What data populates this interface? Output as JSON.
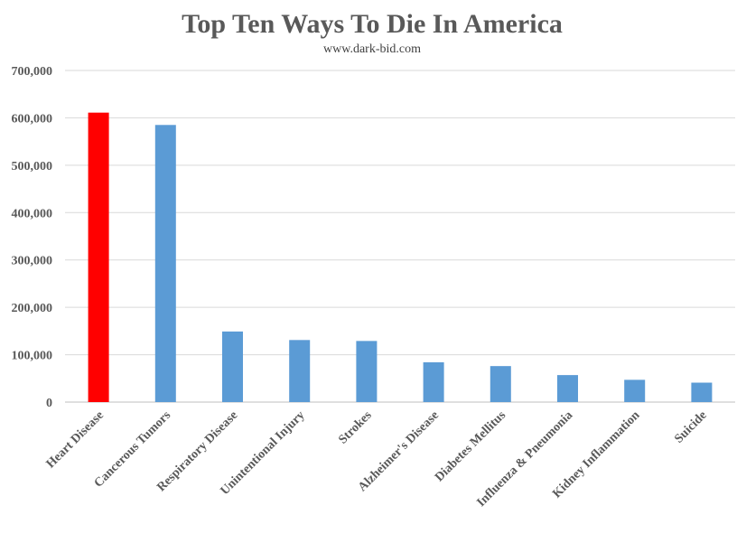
{
  "chart_data": {
    "type": "bar",
    "title": "Top Ten Ways To Die In America",
    "subtitle": "www.dark-bid.com",
    "xlabel": "",
    "ylabel": "",
    "ylim": [
      0,
      700000
    ],
    "yticks": [
      0,
      100000,
      200000,
      300000,
      400000,
      500000,
      600000,
      700000
    ],
    "ytick_labels": [
      "0",
      "100,000",
      "200,000",
      "300,000",
      "400,000",
      "500,000",
      "600,000",
      "700,000"
    ],
    "grid": true,
    "categories": [
      "Heart Disease",
      "Cancerous Tumors",
      "Respiratory Disease",
      "Unintentional Injury",
      "Strokes",
      "Alzheimer's Disease",
      "Diabetes Mellitus",
      "Influenza & Pneumonia",
      "Kidney Inflammation",
      "Suicide"
    ],
    "values": [
      611000,
      585000,
      149000,
      131000,
      129000,
      84000,
      76000,
      57000,
      47000,
      41000
    ],
    "colors": [
      "#ff0000",
      "#5b9bd5",
      "#5b9bd5",
      "#5b9bd5",
      "#5b9bd5",
      "#5b9bd5",
      "#5b9bd5",
      "#5b9bd5",
      "#5b9bd5",
      "#5b9bd5"
    ]
  }
}
